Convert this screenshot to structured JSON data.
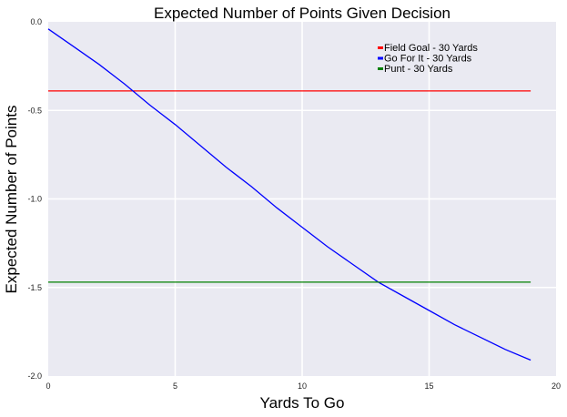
{
  "chart_data": {
    "type": "line",
    "title": "Expected Number of Points Given Decision",
    "xlabel": "Yards To Go",
    "ylabel": "Expected Number of Points",
    "xlim": [
      0,
      20
    ],
    "ylim": [
      -2.0,
      0.0
    ],
    "xticks": [
      "0",
      "5",
      "10",
      "15",
      "20"
    ],
    "yticks": [
      "0.0",
      "-0.5",
      "-1.0",
      "-1.5",
      "-2.0"
    ],
    "xtick_values": [
      0,
      5,
      10,
      15,
      20
    ],
    "ytick_values": [
      0.0,
      -0.5,
      -1.0,
      -1.5,
      -2.0
    ],
    "grid": true,
    "legend_position": "top-right",
    "series": [
      {
        "name": "Field Goal - 30 Yards",
        "color": "#ff0000",
        "x": [
          0,
          19
        ],
        "y": [
          -0.39,
          -0.39
        ]
      },
      {
        "name": "Go For It - 30 Yards",
        "color": "#0000ff",
        "x": [
          0,
          1,
          2,
          3,
          4,
          5,
          6,
          7,
          8,
          9,
          10,
          11,
          12,
          13,
          14,
          15,
          16,
          17,
          18,
          19
        ],
        "y": [
          -0.04,
          -0.14,
          -0.24,
          -0.35,
          -0.47,
          -0.58,
          -0.7,
          -0.82,
          -0.93,
          -1.05,
          -1.16,
          -1.27,
          -1.37,
          -1.47,
          -1.55,
          -1.63,
          -1.71,
          -1.78,
          -1.85,
          -1.91
        ]
      },
      {
        "name": "Punt - 30 Yards",
        "color": "#008000",
        "x": [
          0,
          19
        ],
        "y": [
          -1.47,
          -1.47
        ]
      }
    ]
  }
}
